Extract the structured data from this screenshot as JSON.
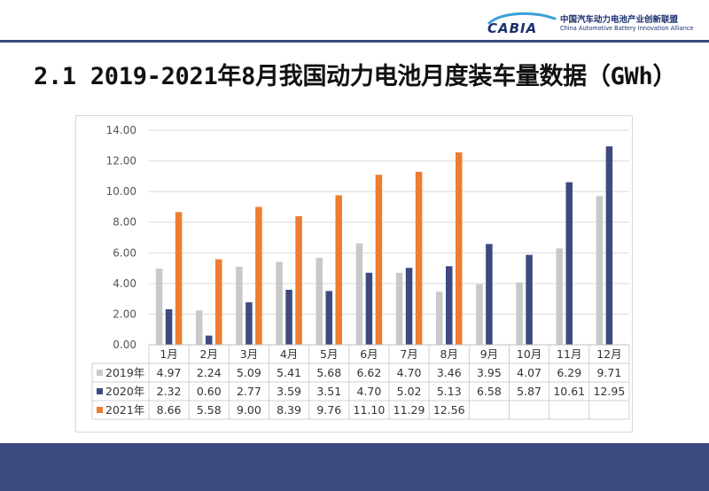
{
  "header": {
    "logo_mark": "CABIA",
    "org_name_cn": "中国汽车动力电池产业创新联盟",
    "org_name_en": "China Automotive Battery Innovation Alliance"
  },
  "slide_title": "2.1 2019-2021年8月我国动力电池月度装车量数据（GWh）",
  "colors": {
    "series_2019": "#c9c9c9",
    "series_2020": "#3d4a80",
    "series_2021": "#ed7d31",
    "header_rule": "#3b4a7e",
    "footer": "#3d4a80"
  },
  "chart_data": {
    "type": "bar",
    "categories": [
      "1月",
      "2月",
      "3月",
      "4月",
      "5月",
      "6月",
      "7月",
      "8月",
      "9月",
      "10月",
      "11月",
      "12月"
    ],
    "series": [
      {
        "name": "2019年",
        "values": [
          4.97,
          2.24,
          5.09,
          5.41,
          5.68,
          6.62,
          4.7,
          3.46,
          3.95,
          4.07,
          6.29,
          9.71
        ]
      },
      {
        "name": "2020年",
        "values": [
          2.32,
          0.6,
          2.77,
          3.59,
          3.51,
          4.7,
          5.02,
          5.13,
          6.58,
          5.87,
          10.61,
          12.95
        ]
      },
      {
        "name": "2021年",
        "values": [
          8.66,
          5.58,
          9.0,
          8.39,
          9.76,
          11.1,
          11.29,
          12.56,
          null,
          null,
          null,
          null
        ]
      }
    ],
    "ylim": [
      0,
      14
    ],
    "yticks": [
      "0.00",
      "2.00",
      "4.00",
      "6.00",
      "8.00",
      "10.00",
      "12.00",
      "14.00"
    ],
    "grid": true,
    "legend": "data-table-below",
    "data_table": true
  }
}
